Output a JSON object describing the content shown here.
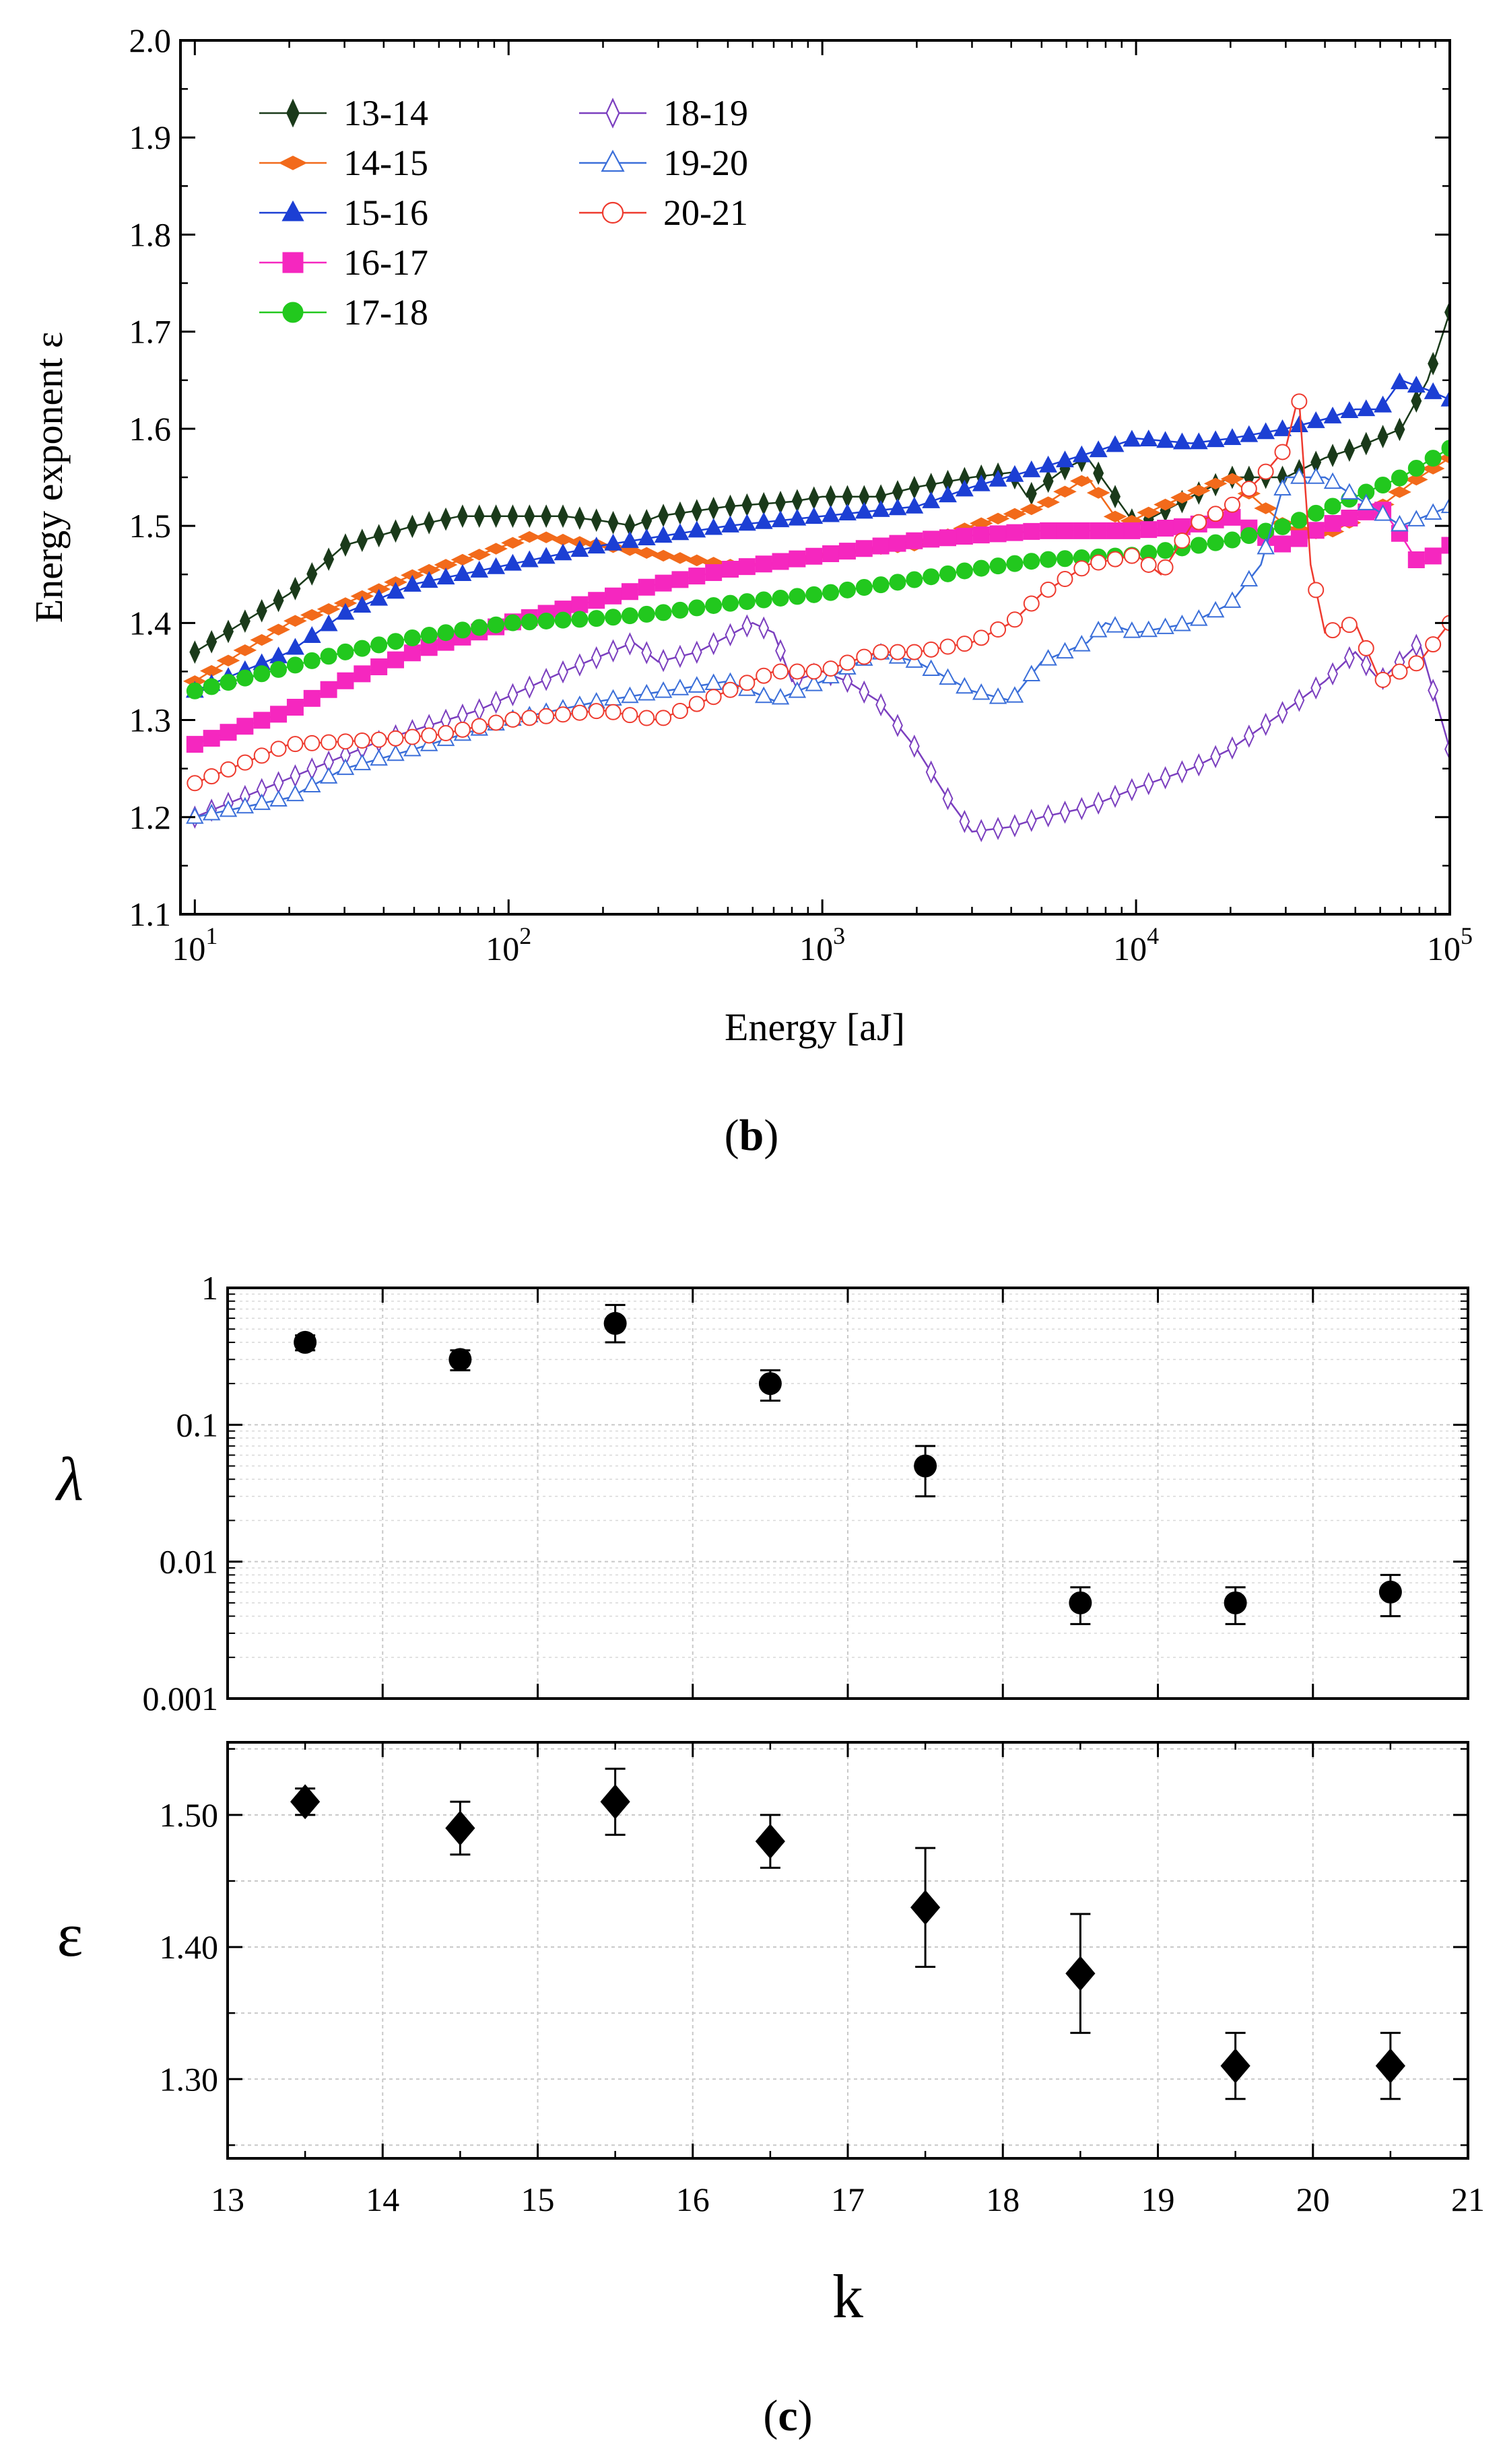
{
  "chart_data": [
    {
      "panel": "b",
      "type": "line",
      "xlabel": "Energy [aJ]",
      "ylabel": "Energy exponent ε",
      "x_scale": "log",
      "xlim": [
        9,
        100000
      ],
      "ylim": [
        1.1,
        2.0
      ],
      "x_ticks": [
        10,
        100,
        1000,
        10000,
        100000
      ],
      "x_tick_labels": [
        {
          "base": "10",
          "exp": "1"
        },
        {
          "base": "10",
          "exp": "2"
        },
        {
          "base": "10",
          "exp": "3"
        },
        {
          "base": "10",
          "exp": "4"
        },
        {
          "base": "10",
          "exp": "5"
        }
      ],
      "y_ticks": [
        1.1,
        1.2,
        1.3,
        1.4,
        1.5,
        1.6,
        1.7,
        1.8,
        1.9,
        2.0
      ],
      "y_tick_labels": [
        "1.1",
        "1.2",
        "1.3",
        "1.4",
        "1.5",
        "1.6",
        "1.7",
        "1.8",
        "1.9",
        "2.0"
      ],
      "grid": false,
      "legend_position": "top-left",
      "series": [
        {
          "name": "13-14",
          "color": "#1a3a1a",
          "marker": "diamond-thin",
          "filled": true,
          "points": [
            [
              10,
              1.37
            ],
            [
              20,
              1.43
            ],
            [
              30,
              1.48
            ],
            [
              50,
              1.5
            ],
            [
              70,
              1.51
            ],
            [
              100,
              1.51
            ],
            [
              150,
              1.51
            ],
            [
              200,
              1.505
            ],
            [
              250,
              1.5
            ],
            [
              300,
              1.51
            ],
            [
              500,
              1.52
            ],
            [
              800,
              1.525
            ],
            [
              1000,
              1.53
            ],
            [
              1500,
              1.53
            ],
            [
              2000,
              1.54
            ],
            [
              3000,
              1.55
            ],
            [
              4000,
              1.555
            ],
            [
              4500,
              1.53
            ],
            [
              6000,
              1.56
            ],
            [
              7000,
              1.57
            ],
            [
              10000,
              1.5
            ],
            [
              15000,
              1.53
            ],
            [
              20000,
              1.55
            ],
            [
              30000,
              1.55
            ],
            [
              40000,
              1.57
            ],
            [
              50000,
              1.58
            ],
            [
              70000,
              1.6
            ],
            [
              85000,
              1.65
            ],
            [
              100000,
              1.72
            ]
          ]
        },
        {
          "name": "14-15",
          "color": "#f26a1b",
          "marker": "diamond-wide",
          "filled": true,
          "points": [
            [
              10,
              1.34
            ],
            [
              20,
              1.4
            ],
            [
              30,
              1.42
            ],
            [
              50,
              1.45
            ],
            [
              80,
              1.47
            ],
            [
              120,
              1.49
            ],
            [
              200,
              1.48
            ],
            [
              300,
              1.47
            ],
            [
              500,
              1.46
            ],
            [
              700,
              1.46
            ],
            [
              1000,
              1.47
            ],
            [
              2000,
              1.48
            ],
            [
              3000,
              1.5
            ],
            [
              5000,
              1.52
            ],
            [
              7000,
              1.55
            ],
            [
              9000,
              1.5
            ],
            [
              12000,
              1.52
            ],
            [
              20000,
              1.55
            ],
            [
              30000,
              1.5
            ],
            [
              40000,
              1.49
            ],
            [
              60000,
              1.52
            ],
            [
              80000,
              1.55
            ],
            [
              100000,
              1.57
            ]
          ]
        },
        {
          "name": "15-16",
          "color": "#1c3fd4",
          "marker": "triangle",
          "filled": true,
          "points": [
            [
              10,
              1.33
            ],
            [
              20,
              1.37
            ],
            [
              30,
              1.41
            ],
            [
              50,
              1.44
            ],
            [
              100,
              1.46
            ],
            [
              200,
              1.48
            ],
            [
              500,
              1.5
            ],
            [
              1000,
              1.51
            ],
            [
              2000,
              1.52
            ],
            [
              3000,
              1.54
            ],
            [
              5000,
              1.56
            ],
            [
              8000,
              1.58
            ],
            [
              10000,
              1.59
            ],
            [
              15000,
              1.585
            ],
            [
              20000,
              1.59
            ],
            [
              30000,
              1.6
            ],
            [
              40000,
              1.61
            ],
            [
              50000,
              1.62
            ],
            [
              60000,
              1.62
            ],
            [
              70000,
              1.65
            ],
            [
              85000,
              1.64
            ],
            [
              100000,
              1.63
            ]
          ]
        },
        {
          "name": "16-17",
          "color": "#f527bf",
          "marker": "square",
          "filled": true,
          "points": [
            [
              10,
              1.275
            ],
            [
              20,
              1.31
            ],
            [
              30,
              1.34
            ],
            [
              50,
              1.37
            ],
            [
              100,
              1.4
            ],
            [
              200,
              1.425
            ],
            [
              300,
              1.44
            ],
            [
              500,
              1.455
            ],
            [
              1000,
              1.47
            ],
            [
              2000,
              1.485
            ],
            [
              3000,
              1.49
            ],
            [
              5000,
              1.495
            ],
            [
              10000,
              1.495
            ],
            [
              15000,
              1.5
            ],
            [
              20000,
              1.51
            ],
            [
              25000,
              1.49
            ],
            [
              30000,
              1.48
            ],
            [
              40000,
              1.5
            ],
            [
              50000,
              1.51
            ],
            [
              60000,
              1.52
            ],
            [
              70000,
              1.49
            ],
            [
              80000,
              1.46
            ],
            [
              100000,
              1.48
            ]
          ]
        },
        {
          "name": "17-18",
          "color": "#22c81e",
          "marker": "circle",
          "filled": true,
          "points": [
            [
              10,
              1.33
            ],
            [
              20,
              1.355
            ],
            [
              30,
              1.37
            ],
            [
              50,
              1.385
            ],
            [
              100,
              1.4
            ],
            [
              200,
              1.405
            ],
            [
              300,
              1.41
            ],
            [
              500,
              1.42
            ],
            [
              1000,
              1.43
            ],
            [
              2000,
              1.445
            ],
            [
              3000,
              1.455
            ],
            [
              5000,
              1.465
            ],
            [
              10000,
              1.47
            ],
            [
              20000,
              1.485
            ],
            [
              30000,
              1.5
            ],
            [
              50000,
              1.53
            ],
            [
              70000,
              1.55
            ],
            [
              100000,
              1.58
            ]
          ]
        },
        {
          "name": "18-19",
          "color": "#7b3fbf",
          "marker": "diamond-thin",
          "filled": false,
          "points": [
            [
              10,
              1.2
            ],
            [
              20,
              1.24
            ],
            [
              40,
              1.28
            ],
            [
              80,
              1.31
            ],
            [
              150,
              1.35
            ],
            [
              250,
              1.38
            ],
            [
              300,
              1.36
            ],
            [
              400,
              1.37
            ],
            [
              600,
              1.4
            ],
            [
              700,
              1.39
            ],
            [
              800,
              1.34
            ],
            [
              1000,
              1.35
            ],
            [
              1200,
              1.34
            ],
            [
              1500,
              1.32
            ],
            [
              2000,
              1.27
            ],
            [
              2500,
              1.22
            ],
            [
              3000,
              1.185
            ],
            [
              4000,
              1.19
            ],
            [
              5000,
              1.2
            ],
            [
              7000,
              1.21
            ],
            [
              10000,
              1.23
            ],
            [
              15000,
              1.25
            ],
            [
              20000,
              1.27
            ],
            [
              30000,
              1.31
            ],
            [
              40000,
              1.34
            ],
            [
              50000,
              1.37
            ],
            [
              60000,
              1.34
            ],
            [
              80000,
              1.38
            ],
            [
              100000,
              1.27
            ]
          ]
        },
        {
          "name": "19-20",
          "color": "#3b6fd9",
          "marker": "triangle",
          "filled": false,
          "points": [
            [
              10,
              1.2
            ],
            [
              20,
              1.22
            ],
            [
              30,
              1.25
            ],
            [
              50,
              1.27
            ],
            [
              100,
              1.3
            ],
            [
              200,
              1.32
            ],
            [
              500,
              1.34
            ],
            [
              700,
              1.32
            ],
            [
              1000,
              1.34
            ],
            [
              1500,
              1.37
            ],
            [
              2000,
              1.36
            ],
            [
              3000,
              1.33
            ],
            [
              4000,
              1.32
            ],
            [
              5000,
              1.36
            ],
            [
              7000,
              1.38
            ],
            [
              8000,
              1.4
            ],
            [
              10000,
              1.39
            ],
            [
              15000,
              1.4
            ],
            [
              20000,
              1.42
            ],
            [
              25000,
              1.46
            ],
            [
              30000,
              1.55
            ],
            [
              40000,
              1.55
            ],
            [
              50000,
              1.53
            ],
            [
              70000,
              1.5
            ],
            [
              100000,
              1.52
            ]
          ]
        },
        {
          "name": "20-21",
          "color": "#ee3b2f",
          "marker": "circle",
          "filled": false,
          "points": [
            [
              10,
              1.235
            ],
            [
              20,
              1.275
            ],
            [
              40,
              1.28
            ],
            [
              60,
              1.285
            ],
            [
              100,
              1.3
            ],
            [
              200,
              1.31
            ],
            [
              300,
              1.3
            ],
            [
              500,
              1.33
            ],
            [
              700,
              1.35
            ],
            [
              1000,
              1.35
            ],
            [
              1500,
              1.37
            ],
            [
              2000,
              1.37
            ],
            [
              3000,
              1.38
            ],
            [
              4000,
              1.4
            ],
            [
              5000,
              1.43
            ],
            [
              7000,
              1.46
            ],
            [
              10000,
              1.47
            ],
            [
              12000,
              1.45
            ],
            [
              15000,
              1.5
            ],
            [
              20000,
              1.52
            ],
            [
              25000,
              1.55
            ],
            [
              30000,
              1.58
            ],
            [
              33000,
              1.635
            ],
            [
              36000,
              1.46
            ],
            [
              40000,
              1.39
            ],
            [
              50000,
              1.4
            ],
            [
              60000,
              1.34
            ],
            [
              80000,
              1.36
            ],
            [
              100000,
              1.4
            ]
          ]
        }
      ]
    },
    {
      "panel": "c-top",
      "type": "scatter",
      "xlabel": "",
      "ylabel": "λ",
      "y_scale": "log",
      "xlim": [
        13,
        21
      ],
      "ylim": [
        0.001,
        1
      ],
      "y_ticks": [
        1,
        0.1,
        0.01,
        0.001
      ],
      "y_tick_labels": [
        "1",
        "0.1",
        "0.01",
        "0.001"
      ],
      "grid": true,
      "marker": "circle",
      "color": "#000000",
      "x": [
        13.5,
        14.5,
        15.5,
        16.5,
        17.5,
        18.5,
        19.5,
        20.5
      ],
      "y": [
        0.4,
        0.3,
        0.55,
        0.2,
        0.05,
        0.005,
        0.005,
        0.006
      ],
      "y_err_low": [
        0.35,
        0.25,
        0.4,
        0.15,
        0.03,
        0.0035,
        0.0035,
        0.004
      ],
      "y_err_high": [
        0.45,
        0.35,
        0.75,
        0.25,
        0.07,
        0.0065,
        0.0065,
        0.008
      ]
    },
    {
      "panel": "c-bottom",
      "type": "scatter",
      "xlabel": "k",
      "ylabel": "ε",
      "xlim": [
        13,
        21
      ],
      "ylim": [
        1.24,
        1.555
      ],
      "x_ticks": [
        13,
        14,
        15,
        16,
        17,
        18,
        19,
        20,
        21
      ],
      "x_tick_labels": [
        "13",
        "14",
        "15",
        "16",
        "17",
        "18",
        "19",
        "20",
        "21"
      ],
      "y_ticks": [
        1.3,
        1.4,
        1.5
      ],
      "y_tick_labels": [
        "1.30",
        "1.40",
        "1.50"
      ],
      "grid": true,
      "marker": "diamond",
      "color": "#000000",
      "x": [
        13.5,
        14.5,
        15.5,
        16.5,
        17.5,
        18.5,
        19.5,
        20.5
      ],
      "y": [
        1.51,
        1.49,
        1.51,
        1.48,
        1.43,
        1.38,
        1.31,
        1.31
      ],
      "y_err_low": [
        1.5,
        1.47,
        1.485,
        1.46,
        1.385,
        1.335,
        1.285,
        1.285
      ],
      "y_err_high": [
        1.52,
        1.51,
        1.535,
        1.5,
        1.475,
        1.425,
        1.335,
        1.335
      ]
    }
  ],
  "labels": {
    "b": {
      "open": "(",
      "letter": "b",
      "close": ")"
    },
    "c": {
      "open": "(",
      "letter": "c",
      "close": ")"
    }
  }
}
